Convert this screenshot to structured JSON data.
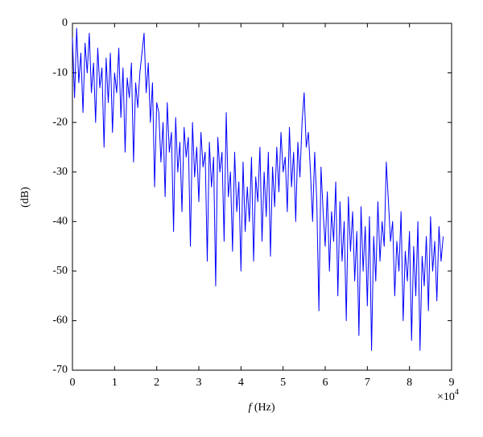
{
  "chart_data": {
    "type": "line",
    "y_label": "(dB)",
    "x_label": {
      "symbol": "f",
      "unit": "(Hz)"
    },
    "x_scale_label": {
      "base": "×10",
      "exponent": "4"
    },
    "xlim": [
      0,
      9
    ],
    "xticks": [
      0,
      1,
      2,
      3,
      4,
      5,
      6,
      7,
      8,
      9
    ],
    "ylim": [
      -70,
      0
    ],
    "yticks": [
      -70,
      -60,
      -50,
      -40,
      -30,
      -20,
      -10,
      0
    ],
    "series": [
      {
        "color": "#0000ff",
        "x": [
          0,
          0.05,
          0.1,
          0.15,
          0.2,
          0.25,
          0.3,
          0.35,
          0.4,
          0.45,
          0.5,
          0.55,
          0.6,
          0.65,
          0.7,
          0.75,
          0.8,
          0.85,
          0.9,
          0.95,
          1,
          1.05,
          1.1,
          1.15,
          1.2,
          1.25,
          1.3,
          1.35,
          1.4,
          1.45,
          1.5,
          1.55,
          1.6,
          1.65,
          1.7,
          1.75,
          1.8,
          1.85,
          1.9,
          1.95,
          2,
          2.05,
          2.1,
          2.15,
          2.2,
          2.25,
          2.3,
          2.35,
          2.4,
          2.45,
          2.5,
          2.55,
          2.6,
          2.65,
          2.7,
          2.75,
          2.8,
          2.85,
          2.9,
          2.95,
          3,
          3.05,
          3.1,
          3.15,
          3.2,
          3.25,
          3.3,
          3.35,
          3.4,
          3.45,
          3.5,
          3.55,
          3.6,
          3.65,
          3.7,
          3.75,
          3.8,
          3.85,
          3.9,
          3.95,
          4,
          4.05,
          4.1,
          4.15,
          4.2,
          4.25,
          4.3,
          4.35,
          4.4,
          4.45,
          4.5,
          4.55,
          4.6,
          4.65,
          4.7,
          4.75,
          4.8,
          4.85,
          4.9,
          4.95,
          5,
          5.05,
          5.1,
          5.15,
          5.2,
          5.25,
          5.3,
          5.35,
          5.4,
          5.45,
          5.5,
          5.55,
          5.6,
          5.65,
          5.7,
          5.75,
          5.8,
          5.85,
          5.9,
          5.95,
          6,
          6.05,
          6.1,
          6.15,
          6.2,
          6.25,
          6.3,
          6.35,
          6.4,
          6.45,
          6.5,
          6.55,
          6.6,
          6.65,
          6.7,
          6.75,
          6.8,
          6.85,
          6.9,
          6.95,
          7,
          7.05,
          7.1,
          7.15,
          7.2,
          7.25,
          7.3,
          7.35,
          7.4,
          7.45,
          7.5,
          7.55,
          7.6,
          7.65,
          7.7,
          7.75,
          7.8,
          7.85,
          7.9,
          7.95,
          8,
          8.05,
          8.1,
          8.15,
          8.2,
          8.25,
          8.3,
          8.35,
          8.4,
          8.45,
          8.5,
          8.55,
          8.6,
          8.65,
          8.7,
          8.75,
          8.8
        ],
        "values": [
          -3,
          -15,
          -1,
          -12,
          -6,
          -18,
          -4,
          -10,
          -2,
          -14,
          -8,
          -20,
          -5,
          -13,
          -9,
          -25,
          -7,
          -16,
          -6,
          -22,
          -10,
          -14,
          -5,
          -19,
          -9,
          -26,
          -11,
          -15,
          -8,
          -28,
          -12,
          -17,
          -10,
          -6,
          -2,
          -14,
          -8,
          -20,
          -12,
          -33,
          -16,
          -18,
          -28,
          -20,
          -35,
          -16,
          -26,
          -22,
          -42,
          -19,
          -30,
          -24,
          -38,
          -21,
          -27,
          -23,
          -45,
          -20,
          -31,
          -25,
          -36,
          -22,
          -29,
          -26,
          -48,
          -24,
          -33,
          -27,
          -53,
          -23,
          -30,
          -26,
          -44,
          -18,
          -35,
          -30,
          -46,
          -26,
          -38,
          -32,
          -50,
          -28,
          -42,
          -33,
          -40,
          -27,
          -48,
          -31,
          -36,
          -25,
          -44,
          -30,
          -39,
          -26,
          -47,
          -29,
          -37,
          -25,
          -34,
          -22,
          -30,
          -27,
          -38,
          -21,
          -33,
          -26,
          -40,
          -24,
          -31,
          -20,
          -14,
          -25,
          -22,
          -30,
          -40,
          -26,
          -36,
          -58,
          -29,
          -38,
          -45,
          -34,
          -50,
          -38,
          -44,
          -32,
          -55,
          -36,
          -48,
          -40,
          -60,
          -35,
          -46,
          -38,
          -52,
          -42,
          -63,
          -37,
          -50,
          -41,
          -57,
          -39,
          -66,
          -43,
          -52,
          -36,
          -48,
          -40,
          -45,
          -28,
          -36,
          -44,
          -40,
          -55,
          -44,
          -50,
          -38,
          -60,
          -46,
          -52,
          -42,
          -64,
          -45,
          -55,
          -40,
          -66,
          -47,
          -53,
          -43,
          -58,
          -39,
          -50,
          -44,
          -56,
          -41,
          -48,
          -43
        ]
      }
    ]
  }
}
